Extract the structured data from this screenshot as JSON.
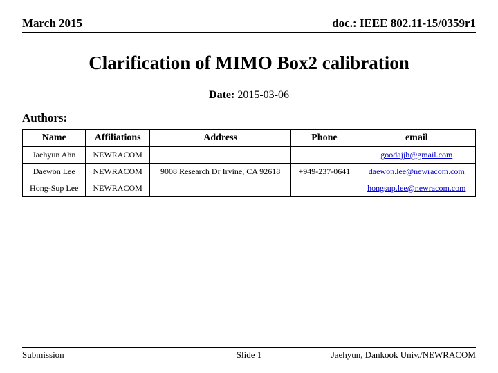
{
  "header": {
    "left": "March 2015",
    "right": "doc.: IEEE 802.11-15/0359r1"
  },
  "title": "Clarification of MIMO Box2 calibration",
  "date": {
    "label": "Date:",
    "value": "2015-03-06"
  },
  "authors_label": "Authors:",
  "table": {
    "columns": [
      "Name",
      "Affiliations",
      "Address",
      "Phone",
      "email"
    ],
    "rows": [
      {
        "name": "Jaehyun Ahn",
        "affil": "NEWRACOM",
        "address": "",
        "phone": "",
        "email": "goodajjh@gmail.com"
      },
      {
        "name": "Daewon Lee",
        "affil": "NEWRACOM",
        "address": "9008 Research Dr\nIrvine, CA 92618",
        "phone": "+949-237-0641",
        "email": "daewon.lee@newracom.com"
      },
      {
        "name": "Hong-Sup Lee",
        "affil": "NEWRACOM",
        "address": "",
        "phone": "",
        "email": "hongsup.lee@newracom.com"
      }
    ]
  },
  "footer": {
    "left": "Submission",
    "center": "Slide 1",
    "right": "Jaehyun, Dankook Univ./NEWRACOM"
  }
}
